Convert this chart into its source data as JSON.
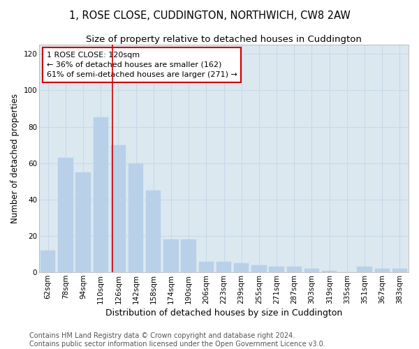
{
  "title": "1, ROSE CLOSE, CUDDINGTON, NORTHWICH, CW8 2AW",
  "subtitle": "Size of property relative to detached houses in Cuddington",
  "xlabel": "Distribution of detached houses by size in Cuddington",
  "ylabel": "Number of detached properties",
  "categories": [
    "62sqm",
    "78sqm",
    "94sqm",
    "110sqm",
    "126sqm",
    "142sqm",
    "158sqm",
    "174sqm",
    "190sqm",
    "206sqm",
    "223sqm",
    "239sqm",
    "255sqm",
    "271sqm",
    "287sqm",
    "303sqm",
    "319sqm",
    "335sqm",
    "351sqm",
    "367sqm",
    "383sqm"
  ],
  "values": [
    12,
    63,
    55,
    85,
    70,
    60,
    45,
    18,
    18,
    6,
    6,
    5,
    4,
    3,
    3,
    2,
    1,
    0,
    3,
    2,
    2
  ],
  "bar_color": "#b8d0e8",
  "bar_edgecolor": "#b8d0e8",
  "grid_color": "#c8d8e8",
  "background_color": "#dce8f0",
  "vline_color": "#cc0000",
  "annotation_line1": "1 ROSE CLOSE: 120sqm",
  "annotation_line2": "← 36% of detached houses are smaller (162)",
  "annotation_line3": "61% of semi-detached houses are larger (271) →",
  "annotation_box_edgecolor": "#cc0000",
  "ylim": [
    0,
    125
  ],
  "yticks": [
    0,
    20,
    40,
    60,
    80,
    100,
    120
  ],
  "footer_line1": "Contains HM Land Registry data © Crown copyright and database right 2024.",
  "footer_line2": "Contains public sector information licensed under the Open Government Licence v3.0.",
  "title_fontsize": 10.5,
  "subtitle_fontsize": 9.5,
  "xlabel_fontsize": 9,
  "ylabel_fontsize": 8.5,
  "tick_fontsize": 7.5,
  "footer_fontsize": 7,
  "annotation_fontsize": 8,
  "vline_xindex": 4
}
